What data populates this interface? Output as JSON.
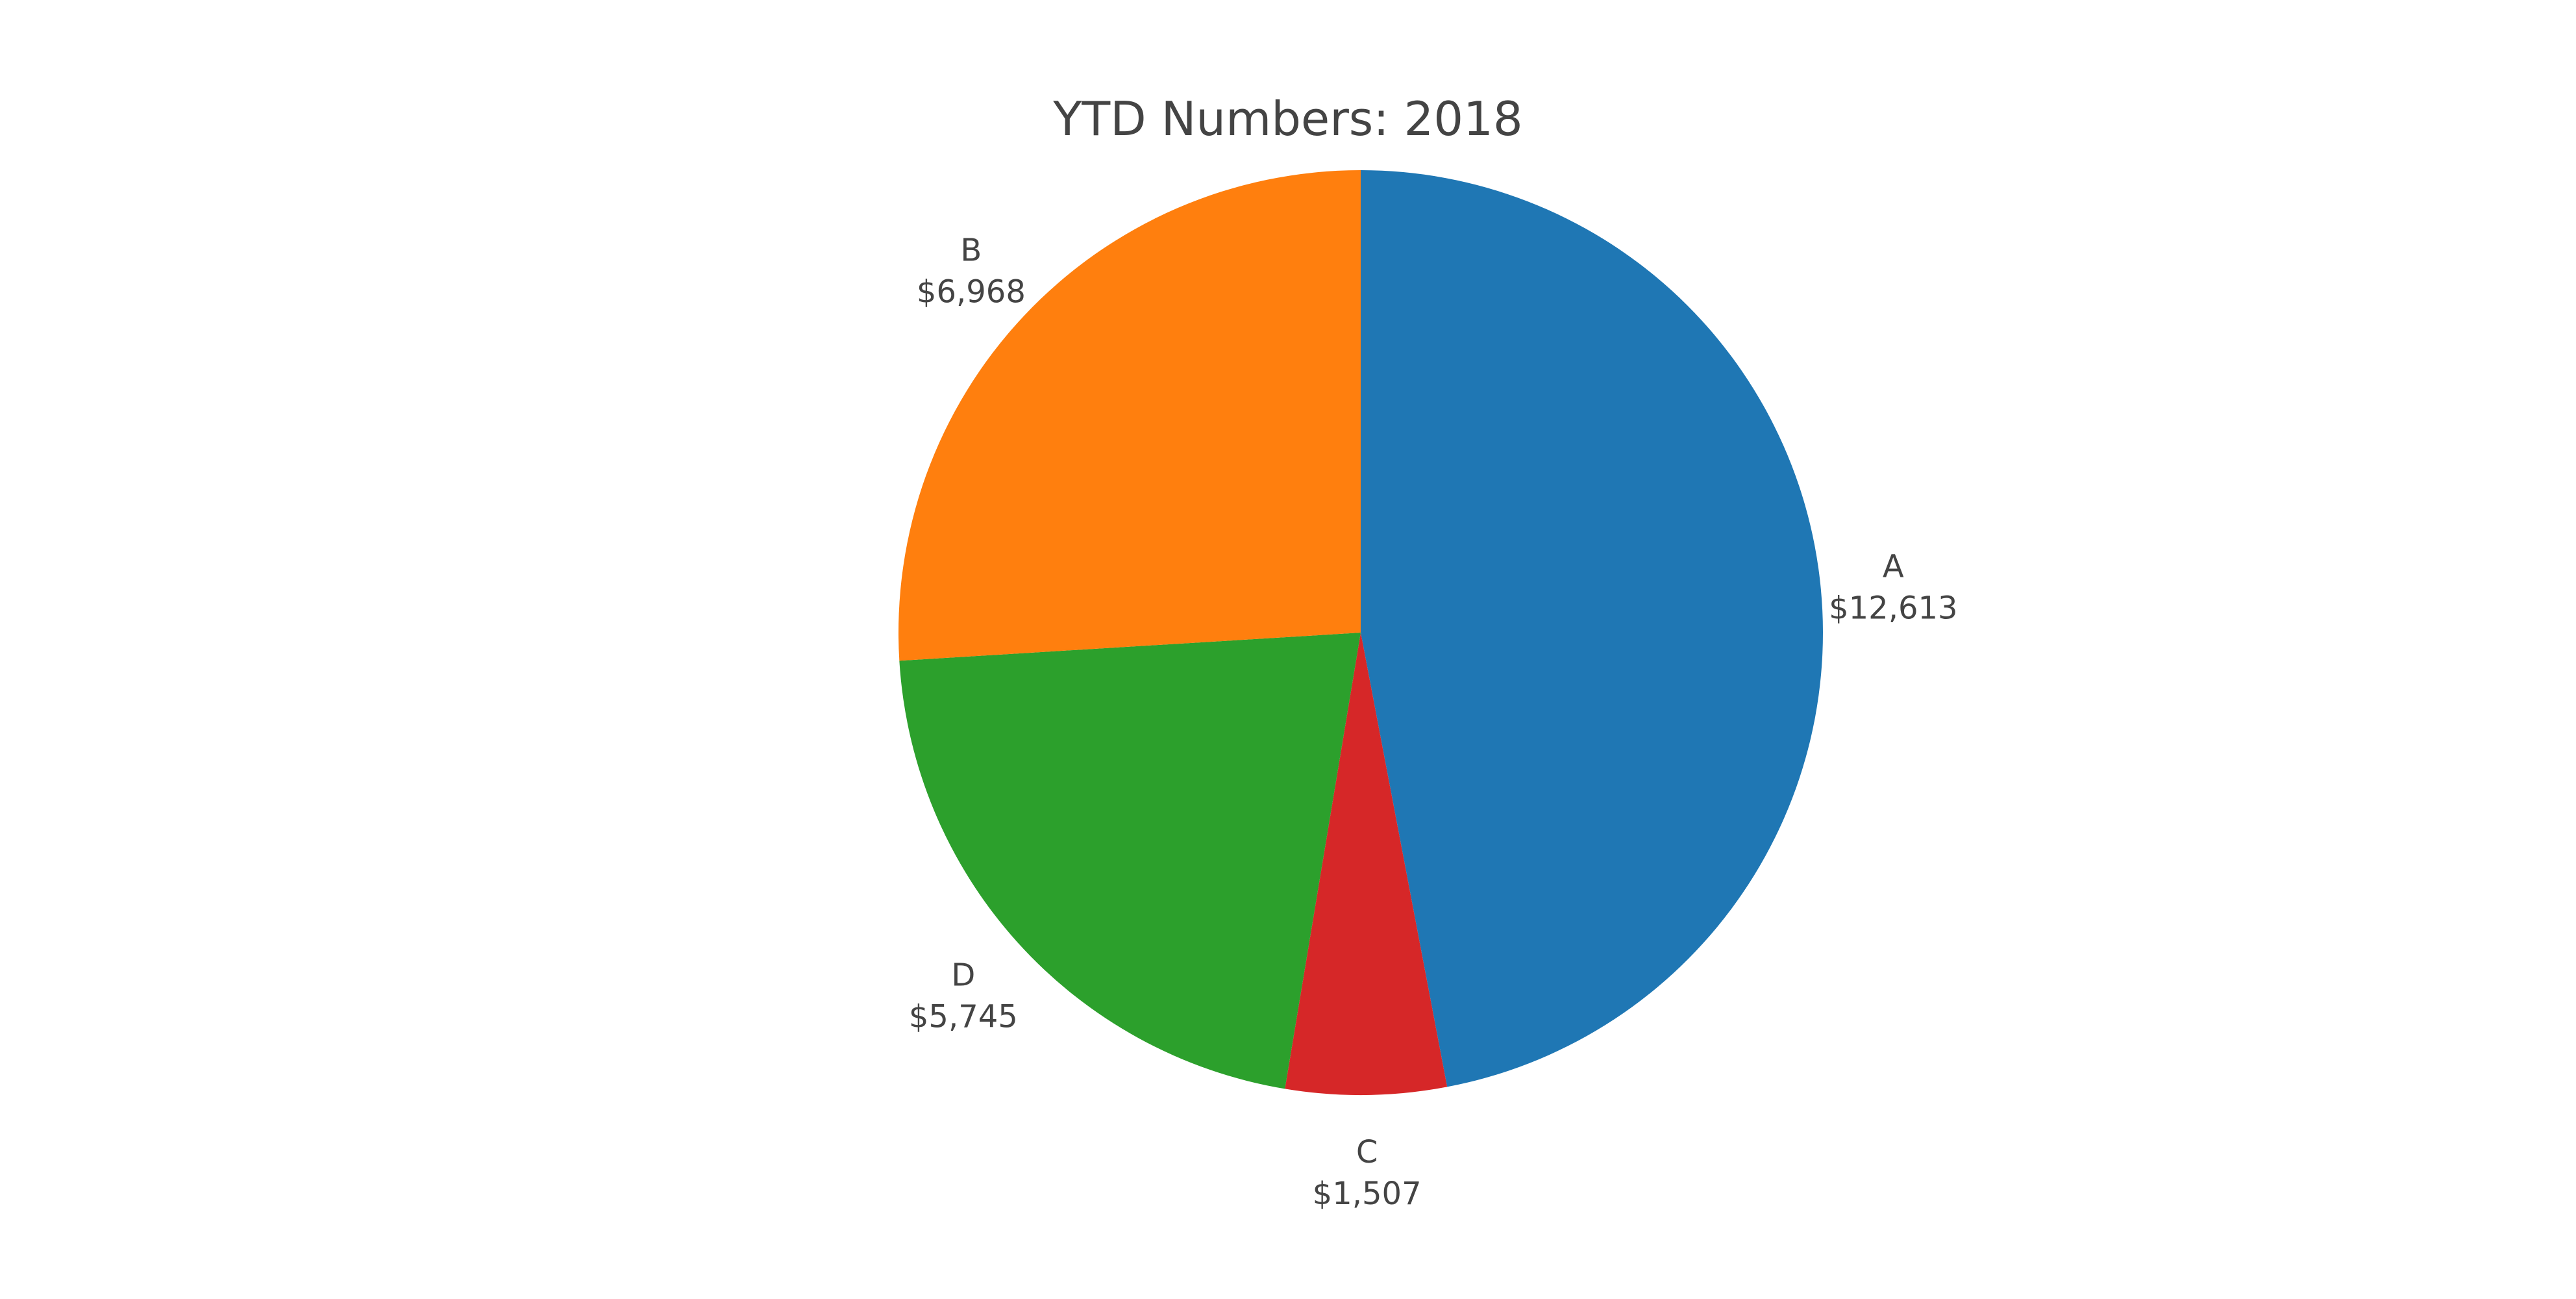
{
  "chart_data": {
    "type": "pie",
    "title": "YTD Numbers: 2018",
    "sort": "clockwise-from-top",
    "slices": [
      {
        "label": "A",
        "value": 12613,
        "display_value": "$12,613",
        "color": "#1f77b4"
      },
      {
        "label": "C",
        "value": 1507,
        "display_value": "$1,507",
        "color": "#d62728"
      },
      {
        "label": "D",
        "value": 5745,
        "display_value": "$5,745",
        "color": "#2ca02c"
      },
      {
        "label": "B",
        "value": 6968,
        "display_value": "$6,968",
        "color": "#ff7f0e"
      }
    ],
    "legend": false
  }
}
